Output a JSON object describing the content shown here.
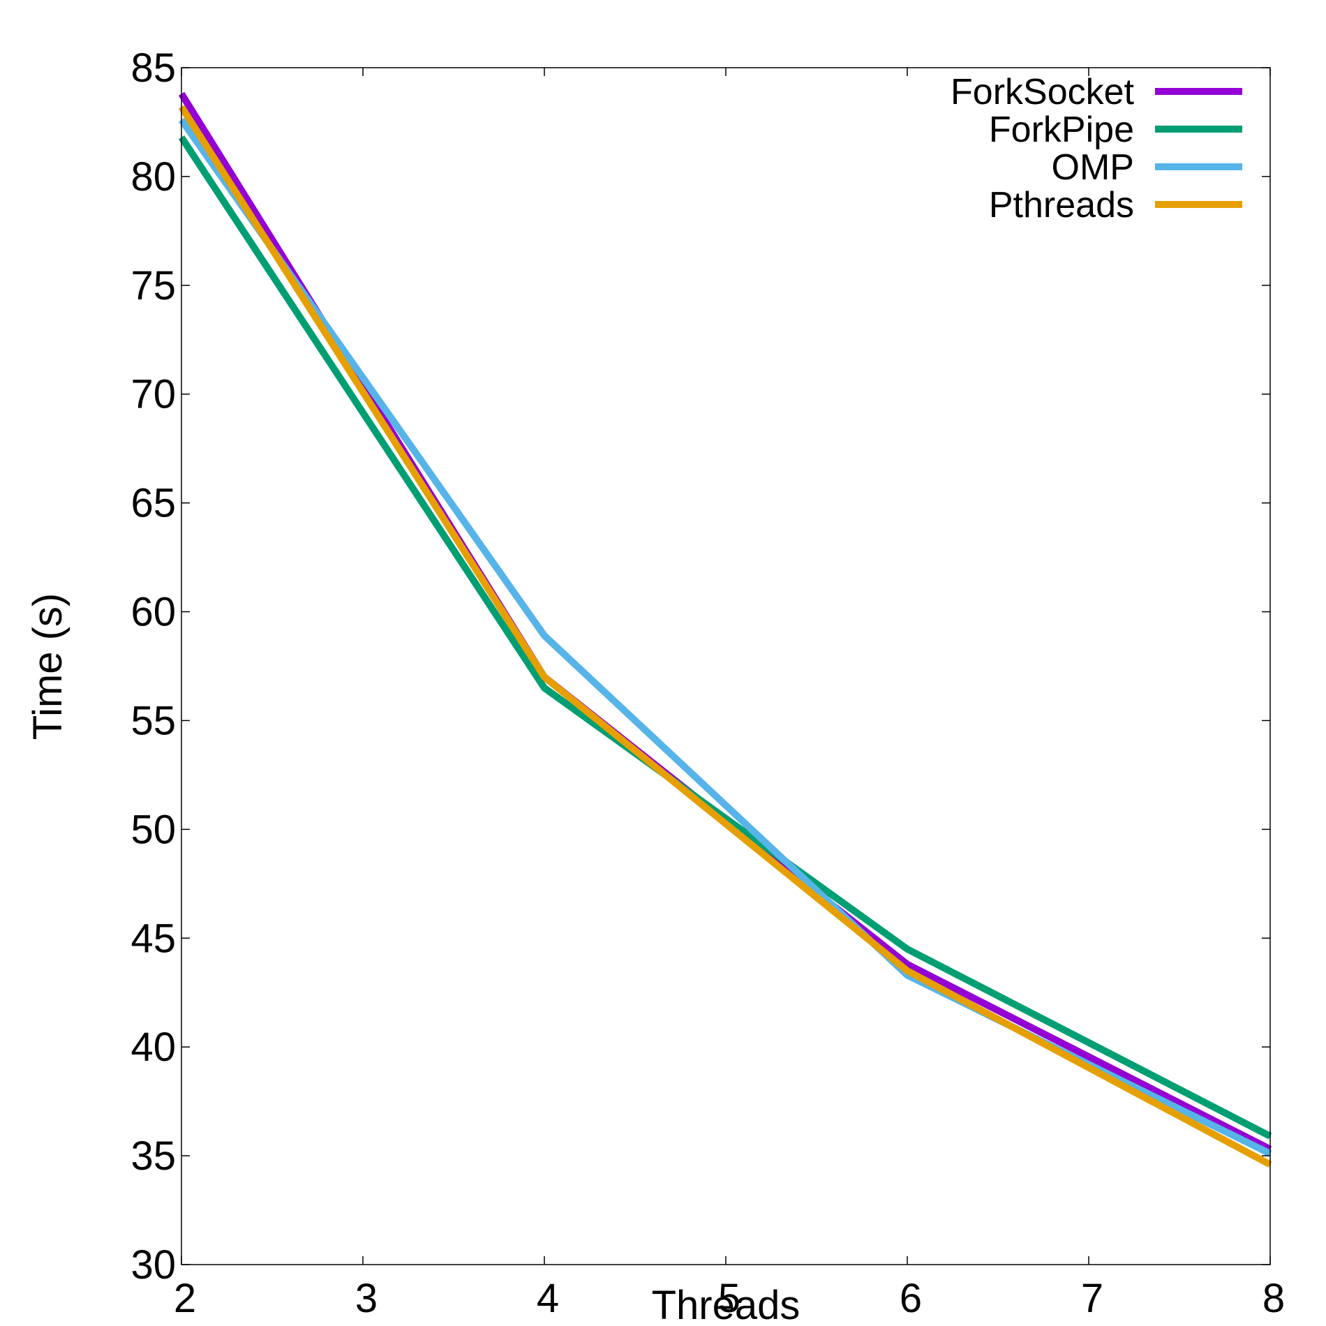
{
  "chart_data": {
    "type": "line",
    "xlabel": "Threads",
    "ylabel": "Time (s)",
    "xlim": [
      2,
      8
    ],
    "ylim": [
      30,
      85
    ],
    "xticks": [
      2,
      3,
      4,
      5,
      6,
      7,
      8
    ],
    "yticks": [
      30,
      35,
      40,
      45,
      50,
      55,
      60,
      65,
      70,
      75,
      80,
      85
    ],
    "grid": false,
    "legend_position": "top-right",
    "x": [
      2,
      4,
      6,
      8
    ],
    "series": [
      {
        "name": "ForkSocket",
        "color": "#9400d3",
        "values": [
          83.8,
          57.0,
          43.8,
          35.3
        ]
      },
      {
        "name": "ForkPipe",
        "color": "#009e73",
        "values": [
          81.8,
          56.5,
          44.5,
          35.9
        ]
      },
      {
        "name": "OMP",
        "color": "#56b4e9",
        "values": [
          82.6,
          58.9,
          43.3,
          35.1
        ]
      },
      {
        "name": "Pthreads",
        "color": "#e69f00",
        "values": [
          83.2,
          57.0,
          43.5,
          34.6
        ]
      }
    ]
  }
}
